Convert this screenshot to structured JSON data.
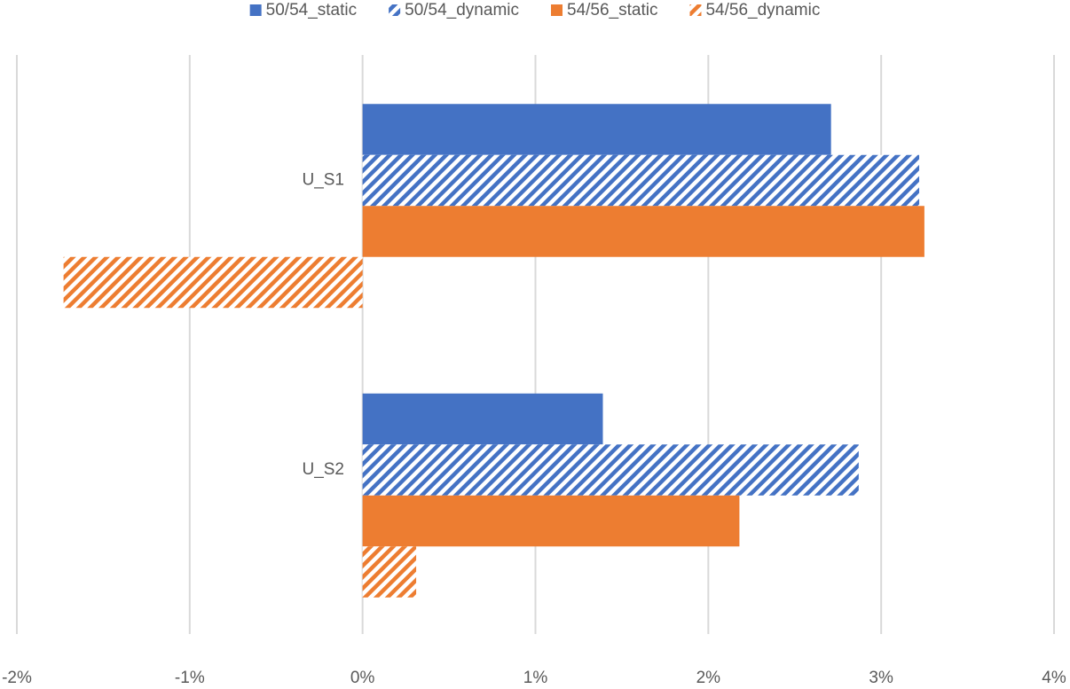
{
  "chart_data": {
    "type": "hbar",
    "categories": [
      "U_S1",
      "U_S2"
    ],
    "series": [
      {
        "name": "50/54_static",
        "color": "#4472c4",
        "hatched": false,
        "values": [
          2.71,
          1.39
        ]
      },
      {
        "name": "50/54_dynamic",
        "color": "#4472c4",
        "hatched": true,
        "values": [
          3.22,
          2.87
        ]
      },
      {
        "name": "54/56_static",
        "color": "#ed7d31",
        "hatched": false,
        "values": [
          3.25,
          2.18
        ]
      },
      {
        "name": "54/56_dynamic",
        "color": "#ed7d31",
        "hatched": true,
        "values": [
          -1.73,
          0.31
        ]
      }
    ],
    "xlim": [
      -2,
      4
    ],
    "xticks": [
      {
        "value": -2,
        "label": "-2%"
      },
      {
        "value": -1,
        "label": "-1%"
      },
      {
        "value": 0,
        "label": "0%"
      },
      {
        "value": 1,
        "label": "1%"
      },
      {
        "value": 2,
        "label": "2%"
      },
      {
        "value": 3,
        "label": "3%"
      },
      {
        "value": 4,
        "label": "4%"
      }
    ],
    "grid": true,
    "legend": "top"
  }
}
